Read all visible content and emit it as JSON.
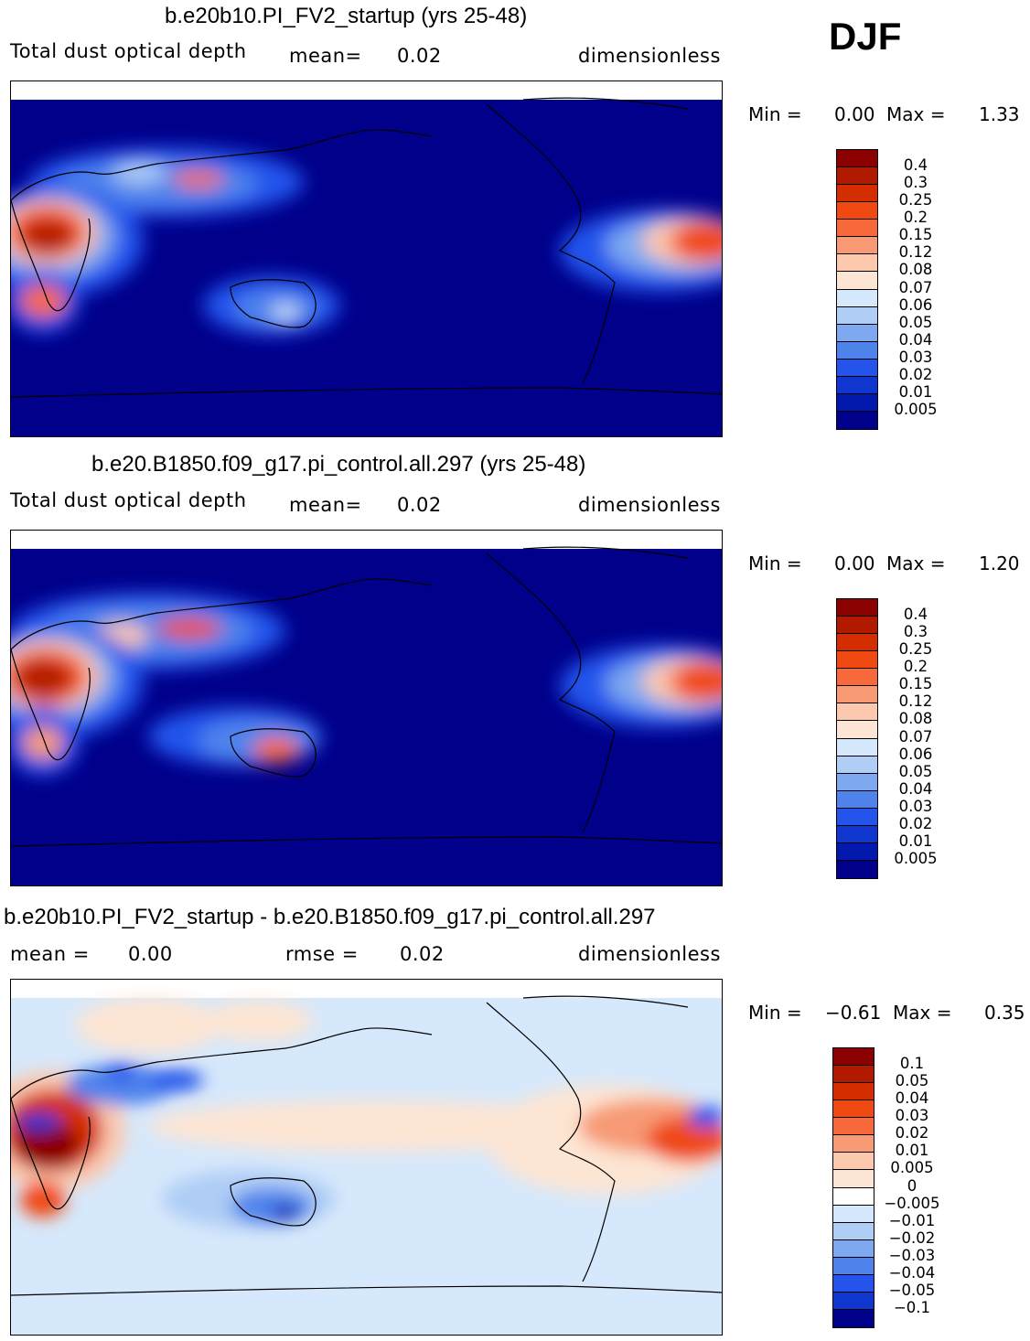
{
  "season": "DJF",
  "colors": {
    "ocean_low": "#00008b",
    "diff_neutral_neg": "#d6e8fb",
    "diff_neutral_pos": "#fde5d3",
    "coast": "#000000"
  },
  "chart_data": [
    {
      "type": "heatmap",
      "title": "b.e20b10.PI_FV2_startup (yrs 25-48)",
      "variable": "Total dust optical depth",
      "stat1_label": "mean=",
      "stat1_value": "0.02",
      "units": "dimensionless",
      "min_label": "Min =",
      "min_value": "0.00",
      "max_label": "Max =",
      "max_value": "1.33",
      "levels": [
        "0.4",
        "0.3",
        "0.25",
        "0.2",
        "0.15",
        "0.12",
        "0.08",
        "0.07",
        "0.06",
        "0.05",
        "0.04",
        "0.03",
        "0.02",
        "0.01",
        "0.005"
      ],
      "colors": [
        "#8b0000",
        "#b21a00",
        "#d42d00",
        "#f04a12",
        "#f7693a",
        "#f79a74",
        "#fcc8ae",
        "#fde5d3",
        "#d6e8fb",
        "#afcdf5",
        "#7ea9f0",
        "#4f83ec",
        "#2454ec",
        "#0f36cf",
        "#0318ad",
        "#00008b"
      ]
    },
    {
      "type": "heatmap",
      "title": "b.e20.B1850.f09_g17.pi_control.all.297 (yrs 25-48)",
      "variable": "Total dust optical depth",
      "stat1_label": "mean=",
      "stat1_value": "0.02",
      "units": "dimensionless",
      "min_label": "Min =",
      "min_value": "0.00",
      "max_label": "Max =",
      "max_value": "1.20",
      "levels": [
        "0.4",
        "0.3",
        "0.25",
        "0.2",
        "0.15",
        "0.12",
        "0.08",
        "0.07",
        "0.06",
        "0.05",
        "0.04",
        "0.03",
        "0.02",
        "0.01",
        "0.005"
      ],
      "colors": [
        "#8b0000",
        "#b21a00",
        "#d42d00",
        "#f04a12",
        "#f7693a",
        "#f79a74",
        "#fcc8ae",
        "#fde5d3",
        "#d6e8fb",
        "#afcdf5",
        "#7ea9f0",
        "#4f83ec",
        "#2454ec",
        "#0f36cf",
        "#0318ad",
        "#00008b"
      ]
    },
    {
      "type": "heatmap",
      "title": "b.e20b10.PI_FV2_startup - b.e20.B1850.f09_g17.pi_control.all.297",
      "variable": "",
      "stat1_label": "mean =",
      "stat1_value": "0.00",
      "stat2_label": "rmse =",
      "stat2_value": "0.02",
      "units": "dimensionless",
      "min_label": "Min =",
      "min_value": "−0.61",
      "max_label": "Max =",
      "max_value": "0.35",
      "levels": [
        "0.1",
        "0.05",
        "0.04",
        "0.03",
        "0.02",
        "0.01",
        "0.005",
        "0",
        "−0.005",
        "−0.01",
        "−0.02",
        "−0.03",
        "−0.04",
        "−0.05",
        "−0.1"
      ],
      "colors": [
        "#8b0000",
        "#b21a00",
        "#d42d00",
        "#f04a12",
        "#f7693a",
        "#f79a74",
        "#fcc8ae",
        "#fde5d3",
        "#ffffff",
        "#d6e8fb",
        "#afcdf5",
        "#7ea9f0",
        "#4f83ec",
        "#2454ec",
        "#0f36cf",
        "#00008b"
      ]
    }
  ]
}
